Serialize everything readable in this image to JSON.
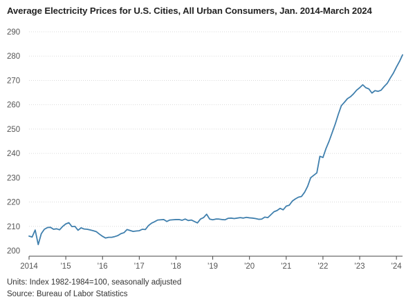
{
  "chart_data": {
    "type": "line",
    "title": "Average Electricity Prices for U.S. Cities, All Urban Consumers, Jan. 2014-March 2024",
    "units_note": "Units: Index 1982-1984=100, seasonally adjusted",
    "source_note": "Source: Bureau of Labor Statistics",
    "xlabel": "",
    "ylabel": "",
    "ylim": [
      200,
      290
    ],
    "yticks": [
      200,
      210,
      220,
      230,
      240,
      250,
      260,
      270,
      280,
      290
    ],
    "xlim": [
      "2014-01",
      "2024-03"
    ],
    "xticks": [
      {
        "label": "2014",
        "value": "2014-01"
      },
      {
        "label": "'15",
        "value": "2015-01"
      },
      {
        "label": "'16",
        "value": "2016-01"
      },
      {
        "label": "'17",
        "value": "2017-01"
      },
      {
        "label": "'18",
        "value": "2018-01"
      },
      {
        "label": "'19",
        "value": "2019-01"
      },
      {
        "label": "'20",
        "value": "2020-01"
      },
      {
        "label": "'21",
        "value": "2021-01"
      },
      {
        "label": "'22",
        "value": "2022-01"
      },
      {
        "label": "'23",
        "value": "2023-01"
      },
      {
        "label": "'24",
        "value": "2024-01"
      }
    ],
    "grid": true,
    "line_color": "#3f7fad",
    "x": [
      "2014-01",
      "2014-02",
      "2014-03",
      "2014-04",
      "2014-05",
      "2014-06",
      "2014-07",
      "2014-08",
      "2014-09",
      "2014-10",
      "2014-11",
      "2014-12",
      "2015-01",
      "2015-02",
      "2015-03",
      "2015-04",
      "2015-05",
      "2015-06",
      "2015-07",
      "2015-08",
      "2015-09",
      "2015-10",
      "2015-11",
      "2015-12",
      "2016-01",
      "2016-02",
      "2016-03",
      "2016-04",
      "2016-05",
      "2016-06",
      "2016-07",
      "2016-08",
      "2016-09",
      "2016-10",
      "2016-11",
      "2016-12",
      "2017-01",
      "2017-02",
      "2017-03",
      "2017-04",
      "2017-05",
      "2017-06",
      "2017-07",
      "2017-08",
      "2017-09",
      "2017-10",
      "2017-11",
      "2017-12",
      "2018-01",
      "2018-02",
      "2018-03",
      "2018-04",
      "2018-05",
      "2018-06",
      "2018-07",
      "2018-08",
      "2018-09",
      "2018-10",
      "2018-11",
      "2018-12",
      "2019-01",
      "2019-02",
      "2019-03",
      "2019-04",
      "2019-05",
      "2019-06",
      "2019-07",
      "2019-08",
      "2019-09",
      "2019-10",
      "2019-11",
      "2019-12",
      "2020-01",
      "2020-02",
      "2020-03",
      "2020-04",
      "2020-05",
      "2020-06",
      "2020-07",
      "2020-08",
      "2020-09",
      "2020-10",
      "2020-11",
      "2020-12",
      "2021-01",
      "2021-02",
      "2021-03",
      "2021-04",
      "2021-05",
      "2021-06",
      "2021-07",
      "2021-08",
      "2021-09",
      "2021-10",
      "2021-11",
      "2021-12",
      "2022-01",
      "2022-02",
      "2022-03",
      "2022-04",
      "2022-05",
      "2022-06",
      "2022-07",
      "2022-08",
      "2022-09",
      "2022-10",
      "2022-11",
      "2022-12",
      "2023-01",
      "2023-02",
      "2023-03",
      "2023-04",
      "2023-05",
      "2023-06",
      "2023-07",
      "2023-08",
      "2023-09",
      "2023-10",
      "2023-11",
      "2023-12",
      "2024-01",
      "2024-02",
      "2024-03"
    ],
    "series": [
      {
        "values": [
          206.0,
          205.6,
          208.5,
          202.5,
          207.0,
          208.8,
          209.5,
          209.6,
          208.8,
          209.0,
          208.6,
          210.0,
          211.0,
          211.5,
          209.9,
          210.0,
          208.4,
          209.4,
          208.9,
          208.8,
          208.5,
          208.2,
          207.8,
          206.8,
          205.9,
          205.2,
          205.5,
          205.5,
          205.8,
          206.2,
          207.0,
          207.4,
          208.7,
          208.3,
          207.9,
          208.1,
          208.2,
          208.8,
          208.7,
          210.3,
          211.3,
          211.9,
          212.6,
          212.7,
          212.8,
          212.0,
          212.6,
          212.7,
          212.8,
          212.8,
          212.5,
          213.0,
          212.4,
          212.6,
          212.0,
          211.4,
          213.0,
          213.6,
          215.0,
          213.0,
          212.7,
          213.0,
          213.0,
          212.8,
          212.7,
          213.3,
          213.4,
          213.2,
          213.4,
          213.6,
          213.4,
          213.7,
          213.5,
          213.4,
          213.2,
          212.9,
          213.0,
          213.8,
          213.6,
          214.8,
          216.0,
          216.5,
          217.4,
          216.8,
          218.3,
          218.7,
          220.4,
          221.3,
          222.0,
          222.3,
          224.0,
          226.5,
          230.0,
          231.0,
          232.0,
          238.8,
          238.3,
          242.0,
          245.0,
          248.5,
          252.0,
          256.0,
          259.6,
          261.0,
          262.5,
          263.3,
          264.5,
          266.0,
          267.0,
          268.2,
          267.0,
          266.5,
          264.8,
          265.8,
          265.5,
          266.0,
          267.5,
          268.8,
          271.0,
          273.0,
          275.5,
          277.8,
          280.5
        ]
      }
    ]
  }
}
